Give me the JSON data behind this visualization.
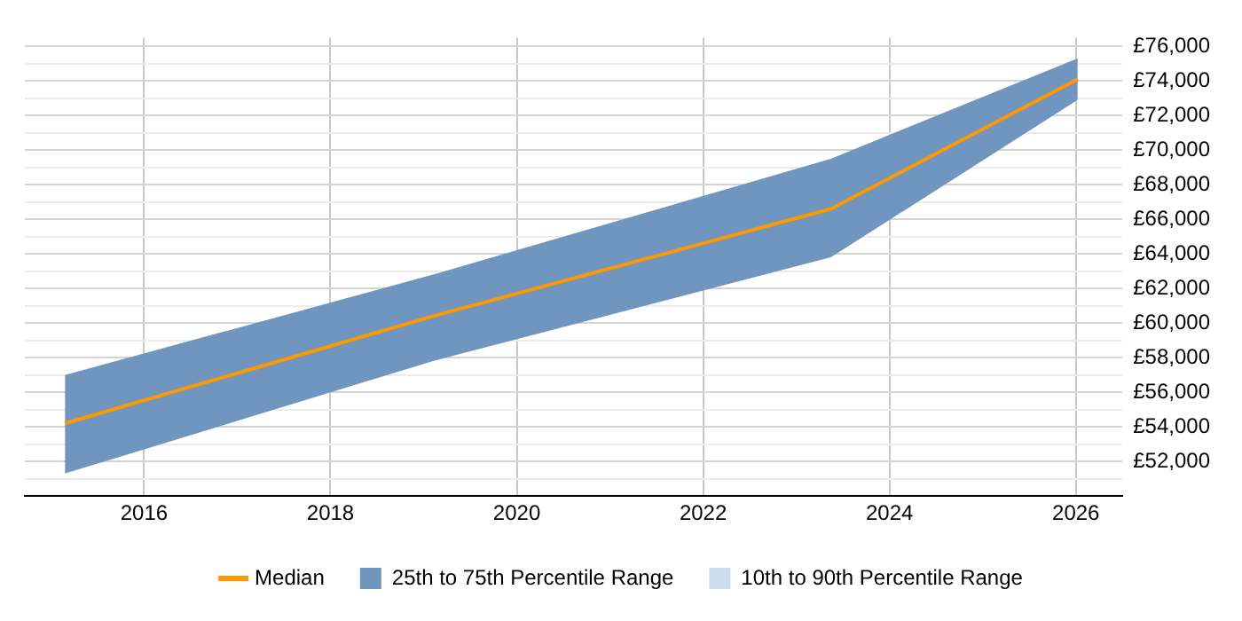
{
  "chart_data": {
    "type": "line",
    "x": [
      2015.15,
      2019.1,
      2023.37,
      2026.02
    ],
    "series": [
      {
        "name": "Median",
        "type": "line",
        "color": "#ff9900",
        "values": [
          54200,
          60400,
          66600,
          74100
        ],
        "lower": [
          51300,
          57800,
          63800,
          72900
        ],
        "upper": [
          57000,
          62800,
          69500,
          75300
        ]
      },
      {
        "name": "25th to 75th Percentile Range",
        "type": "area",
        "color": "#7096bf",
        "values": [
          null,
          null,
          null,
          null
        ]
      },
      {
        "name": "10th to 90th Percentile Range",
        "type": "area",
        "color": "#ccdcee",
        "values": [
          null,
          null,
          null,
          null
        ]
      }
    ],
    "xlim": [
      2014.72,
      2026.5
    ],
    "xticks": [
      2016,
      2018,
      2020,
      2022,
      2024,
      2026
    ],
    "ylim": [
      50000,
      76500
    ],
    "yticks": [
      {
        "value": 51000,
        "label": null
      },
      {
        "value": 52000,
        "label": "£52,000"
      },
      {
        "value": 53000,
        "label": null
      },
      {
        "value": 54000,
        "label": "£54,000"
      },
      {
        "value": 55000,
        "label": null
      },
      {
        "value": 56000,
        "label": "£56,000"
      },
      {
        "value": 57000,
        "label": null
      },
      {
        "value": 58000,
        "label": "£58,000"
      },
      {
        "value": 59000,
        "label": null
      },
      {
        "value": 60000,
        "label": "£60,000"
      },
      {
        "value": 61000,
        "label": null
      },
      {
        "value": 62000,
        "label": "£62,000"
      },
      {
        "value": 63000,
        "label": null
      },
      {
        "value": 64000,
        "label": "£64,000"
      },
      {
        "value": 65000,
        "label": null
      },
      {
        "value": 66000,
        "label": "£66,000"
      },
      {
        "value": 67000,
        "label": null
      },
      {
        "value": 68000,
        "label": "£68,000"
      },
      {
        "value": 69000,
        "label": null
      },
      {
        "value": 70000,
        "label": "£70,000"
      },
      {
        "value": 71000,
        "label": null
      },
      {
        "value": 72000,
        "label": "£72,000"
      },
      {
        "value": 73000,
        "label": null
      },
      {
        "value": 74000,
        "label": "£74,000"
      },
      {
        "value": 75000,
        "label": null
      },
      {
        "value": 76000,
        "label": "£76,000"
      }
    ],
    "grid": true,
    "legend": "bottom",
    "marker": "none",
    "line_style": "solid"
  }
}
